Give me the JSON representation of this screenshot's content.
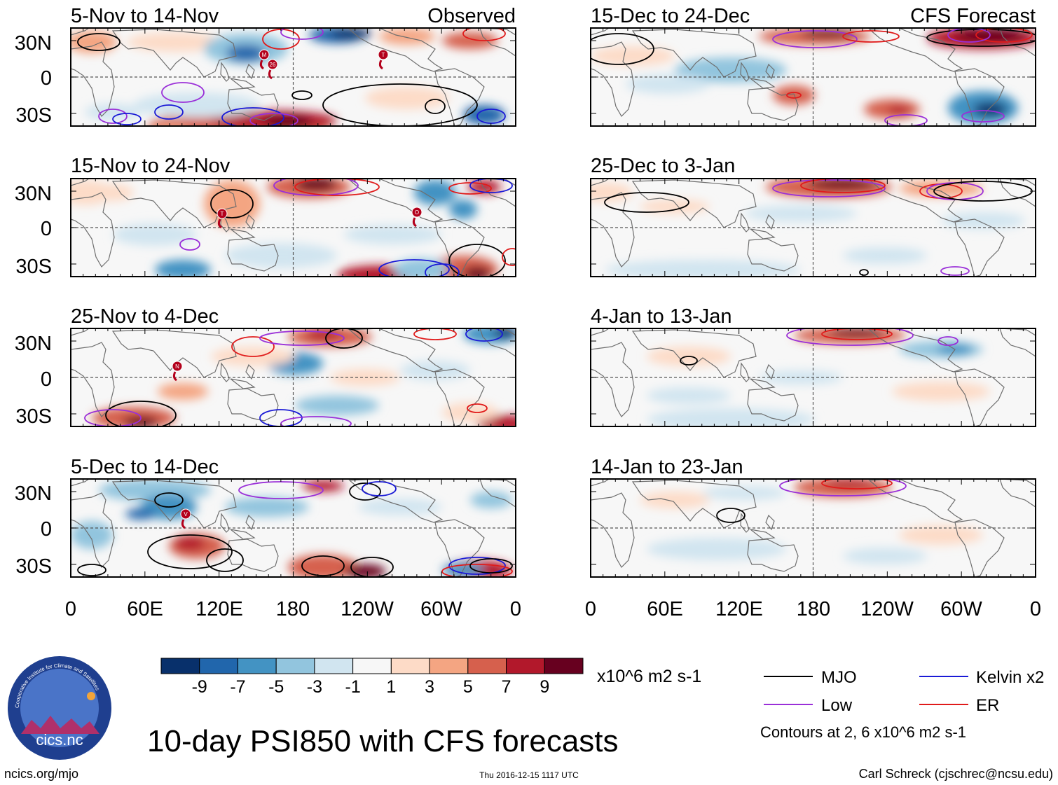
{
  "title": "10-day PSI850 with CFS forecasts",
  "columns": {
    "left_label": "Observed",
    "right_label": "CFS Forecast"
  },
  "panels_left": [
    {
      "period": "5-Nov to 14-Nov"
    },
    {
      "period": "15-Nov to 24-Nov"
    },
    {
      "period": "25-Nov to 4-Dec"
    },
    {
      "period": "5-Dec to 14-Dec"
    }
  ],
  "panels_right": [
    {
      "period": "15-Dec to 24-Dec"
    },
    {
      "period": "25-Dec to 3-Jan"
    },
    {
      "period": "4-Jan to 13-Jan"
    },
    {
      "period": "14-Jan to 23-Jan"
    }
  ],
  "storm_markers": [
    "M",
    "26",
    "T",
    "T",
    "O",
    "N",
    "V"
  ],
  "colors": {
    "mjo": "#000000",
    "kelvin": "#1a1ad6",
    "low": "#9a2fd8",
    "er": "#e01b1b",
    "land": "#6e6e6e"
  },
  "chart_data": {
    "type": "heatmap",
    "variable": "PSI850",
    "x_ticks": [
      "0",
      "60E",
      "120E",
      "180",
      "120W",
      "60W",
      "0"
    ],
    "y_ticks": [
      "30N",
      "0",
      "30S"
    ],
    "xlim": [
      0,
      360
    ],
    "ylim": [
      -40,
      40
    ],
    "colorbar": {
      "ticks": [
        "-9",
        "-7",
        "-5",
        "-3",
        "-1",
        "1",
        "3",
        "5",
        "7",
        "9"
      ],
      "units": "x10^6 m2 s-1",
      "colors": [
        "#08306b",
        "#2166ac",
        "#4393c3",
        "#92c5de",
        "#d1e5f0",
        "#f7f7f7",
        "#fddbc7",
        "#f4a582",
        "#d6604d",
        "#b2182b",
        "#67001f"
      ]
    },
    "legend": [
      {
        "name": "MJO",
        "color": "#000000"
      },
      {
        "name": "Kelvin x2",
        "color": "#1a1ad6"
      },
      {
        "name": "Low",
        "color": "#9a2fd8"
      },
      {
        "name": "ER",
        "color": "#e01b1b"
      }
    ],
    "contour_note": "Contours at 2, 6 x10^6 m2 s-1"
  },
  "footer": {
    "left": "ncics.org/mjo",
    "center": "Thu 2016-12-15 1117 UTC",
    "right": "Carl Schreck (cjschrec@ncsu.edu)"
  },
  "logo": {
    "text": "cics.nc",
    "ring_text": "Cooperative Institute for Climate and Satellites"
  }
}
